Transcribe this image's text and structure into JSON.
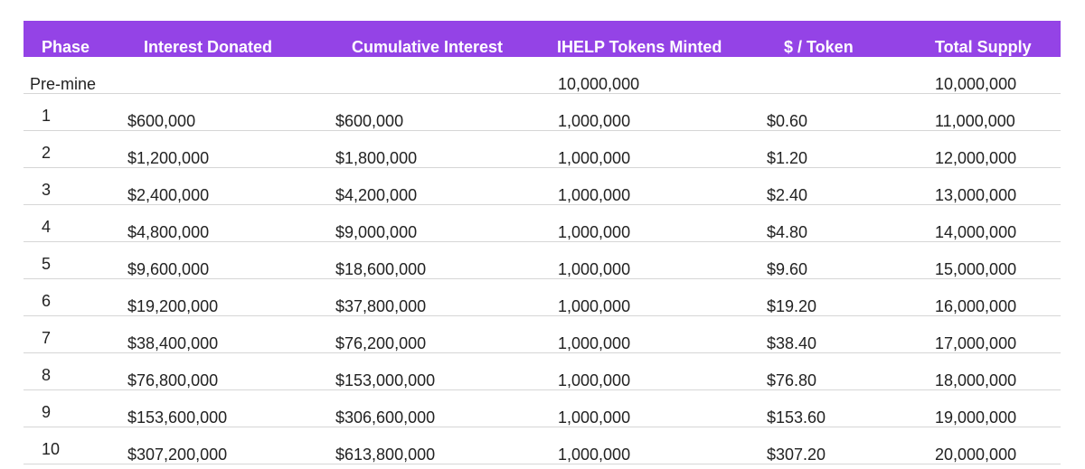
{
  "headers": {
    "phase": "Phase",
    "interest_donated": "Interest Donated",
    "cumulative_interest": "Cumulative Interest",
    "tokens_minted": "IHELP Tokens Minted",
    "price_per_token": "$ / Token",
    "total_supply": "Total Supply"
  },
  "rows": [
    {
      "phase": "Pre-mine",
      "interest_donated": "",
      "cumulative_interest": "",
      "tokens_minted": "10,000,000",
      "price_per_token": "",
      "total_supply": "10,000,000"
    },
    {
      "phase": "1",
      "interest_donated": "$600,000",
      "cumulative_interest": "$600,000",
      "tokens_minted": "1,000,000",
      "price_per_token": "$0.60",
      "total_supply": "11,000,000"
    },
    {
      "phase": "2",
      "interest_donated": "$1,200,000",
      "cumulative_interest": "$1,800,000",
      "tokens_minted": "1,000,000",
      "price_per_token": "$1.20",
      "total_supply": "12,000,000"
    },
    {
      "phase": "3",
      "interest_donated": "$2,400,000",
      "cumulative_interest": "$4,200,000",
      "tokens_minted": "1,000,000",
      "price_per_token": "$2.40",
      "total_supply": "13,000,000"
    },
    {
      "phase": "4",
      "interest_donated": "$4,800,000",
      "cumulative_interest": "$9,000,000",
      "tokens_minted": "1,000,000",
      "price_per_token": "$4.80",
      "total_supply": "14,000,000"
    },
    {
      "phase": "5",
      "interest_donated": "$9,600,000",
      "cumulative_interest": "$18,600,000",
      "tokens_minted": "1,000,000",
      "price_per_token": "$9.60",
      "total_supply": "15,000,000"
    },
    {
      "phase": "6",
      "interest_donated": "$19,200,000",
      "cumulative_interest": "$37,800,000",
      "tokens_minted": "1,000,000",
      "price_per_token": "$19.20",
      "total_supply": "16,000,000"
    },
    {
      "phase": "7",
      "interest_donated": "$38,400,000",
      "cumulative_interest": "$76,200,000",
      "tokens_minted": "1,000,000",
      "price_per_token": "$38.40",
      "total_supply": "17,000,000"
    },
    {
      "phase": "8",
      "interest_donated": "$76,800,000",
      "cumulative_interest": "$153,000,000",
      "tokens_minted": "1,000,000",
      "price_per_token": "$76.80",
      "total_supply": "18,000,000"
    },
    {
      "phase": "9",
      "interest_donated": "$153,600,000",
      "cumulative_interest": "$306,600,000",
      "tokens_minted": "1,000,000",
      "price_per_token": "$153.60",
      "total_supply": "19,000,000"
    },
    {
      "phase": "10",
      "interest_donated": "$307,200,000",
      "cumulative_interest": "$613,800,000",
      "tokens_minted": "1,000,000",
      "price_per_token": "$307.20",
      "total_supply": "20,000,000"
    }
  ],
  "colors": {
    "header_background": "#9443e6",
    "header_text": "#ffffff",
    "row_divider": "#d6d6d6"
  }
}
